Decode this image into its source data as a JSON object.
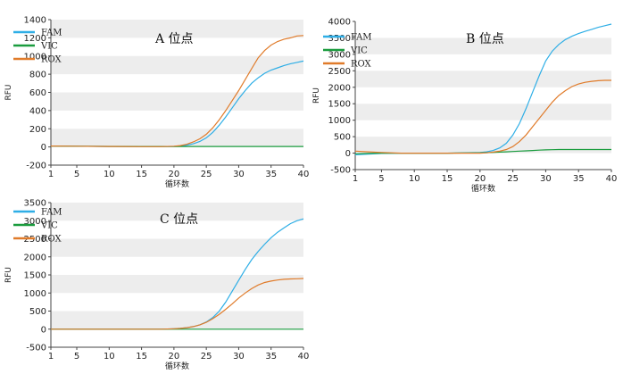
{
  "chart_data": [
    {
      "type": "line",
      "title": "A 位点",
      "xlabel": "循环数",
      "ylabel": "RFU",
      "xlim": [
        1,
        40
      ],
      "ylim": [
        -200,
        1400
      ],
      "xticks": [
        1,
        5,
        10,
        15,
        20,
        25,
        30,
        35,
        40
      ],
      "yticks": [
        -200,
        0,
        200,
        400,
        600,
        800,
        1000,
        1200,
        1400
      ],
      "grid": "horizontal bands",
      "legend_position": "top-left",
      "x": [
        1,
        5,
        10,
        15,
        18,
        20,
        21,
        22,
        23,
        24,
        25,
        26,
        27,
        28,
        29,
        30,
        31,
        32,
        33,
        34,
        35,
        36,
        37,
        38,
        39,
        40
      ],
      "series": [
        {
          "name": "FAM",
          "color": "#2eaee6",
          "values": [
            10,
            8,
            5,
            3,
            3,
            5,
            10,
            20,
            35,
            60,
            100,
            160,
            240,
            330,
            430,
            530,
            620,
            700,
            760,
            810,
            845,
            870,
            895,
            915,
            930,
            945
          ]
        },
        {
          "name": "VIC",
          "color": "#1a9c3e",
          "values": [
            10,
            8,
            6,
            5,
            5,
            5,
            5,
            5,
            5,
            5,
            5,
            5,
            5,
            5,
            5,
            5,
            5,
            5,
            5,
            5,
            5,
            5,
            5,
            5,
            5,
            5
          ]
        },
        {
          "name": "ROX",
          "color": "#e07b2a",
          "values": [
            10,
            8,
            5,
            3,
            3,
            8,
            15,
            30,
            55,
            90,
            140,
            210,
            300,
            400,
            510,
            620,
            740,
            860,
            980,
            1060,
            1120,
            1160,
            1185,
            1200,
            1220,
            1225
          ]
        }
      ]
    },
    {
      "type": "line",
      "title": "B 位点",
      "xlabel": "循环数",
      "ylabel": "RFU",
      "xlim": [
        1,
        40
      ],
      "ylim": [
        -500,
        4000
      ],
      "xticks": [
        1,
        5,
        10,
        15,
        20,
        25,
        30,
        35,
        40
      ],
      "yticks": [
        -500,
        0,
        500,
        1000,
        1500,
        2000,
        2500,
        3000,
        3500,
        4000
      ],
      "grid": "horizontal bands",
      "legend_position": "top-left",
      "x": [
        1,
        3,
        5,
        8,
        10,
        15,
        20,
        21,
        22,
        23,
        24,
        25,
        26,
        27,
        28,
        29,
        30,
        31,
        32,
        33,
        34,
        35,
        36,
        37,
        38,
        39,
        40
      ],
      "series": [
        {
          "name": "FAM",
          "color": "#2eaee6",
          "values": [
            -50,
            -30,
            -10,
            0,
            0,
            0,
            20,
            40,
            80,
            160,
            300,
            550,
            900,
            1350,
            1850,
            2350,
            2800,
            3100,
            3300,
            3450,
            3550,
            3630,
            3700,
            3760,
            3820,
            3870,
            3920
          ]
        },
        {
          "name": "VIC",
          "color": "#1a9c3e",
          "values": [
            -20,
            -10,
            0,
            0,
            0,
            0,
            10,
            15,
            20,
            30,
            40,
            50,
            60,
            70,
            80,
            90,
            100,
            105,
            110,
            110,
            110,
            110,
            110,
            110,
            110,
            110,
            110
          ]
        },
        {
          "name": "ROX",
          "color": "#e07b2a",
          "values": [
            60,
            40,
            20,
            0,
            0,
            0,
            0,
            10,
            30,
            60,
            110,
            200,
            350,
            550,
            800,
            1050,
            1300,
            1550,
            1750,
            1900,
            2020,
            2100,
            2150,
            2180,
            2200,
            2210,
            2210
          ]
        }
      ]
    },
    {
      "type": "line",
      "title": "C 位点",
      "xlabel": "循环数",
      "ylabel": "RFU",
      "xlim": [
        1,
        40
      ],
      "ylim": [
        -500,
        3500
      ],
      "xticks": [
        1,
        5,
        10,
        15,
        20,
        25,
        30,
        35,
        40
      ],
      "yticks": [
        -500,
        0,
        500,
        1000,
        1500,
        2000,
        2500,
        3000,
        3500
      ],
      "grid": "horizontal bands",
      "legend_position": "top-left",
      "x": [
        1,
        5,
        10,
        15,
        18,
        20,
        21,
        22,
        23,
        24,
        25,
        26,
        27,
        28,
        29,
        30,
        31,
        32,
        33,
        34,
        35,
        36,
        37,
        38,
        39,
        40
      ],
      "series": [
        {
          "name": "FAM",
          "color": "#2eaee6",
          "values": [
            0,
            0,
            0,
            0,
            0,
            10,
            20,
            40,
            70,
            120,
            200,
            320,
            500,
            750,
            1050,
            1350,
            1650,
            1920,
            2150,
            2350,
            2530,
            2680,
            2800,
            2920,
            3000,
            3050
          ]
        },
        {
          "name": "VIC",
          "color": "#1a9c3e",
          "values": [
            0,
            0,
            0,
            0,
            0,
            0,
            0,
            0,
            0,
            0,
            0,
            0,
            0,
            0,
            0,
            0,
            0,
            0,
            0,
            0,
            0,
            0,
            0,
            0,
            0,
            0
          ]
        },
        {
          "name": "ROX",
          "color": "#e07b2a",
          "values": [
            0,
            0,
            0,
            0,
            0,
            10,
            20,
            40,
            70,
            120,
            190,
            290,
            410,
            550,
            700,
            860,
            1000,
            1120,
            1220,
            1290,
            1330,
            1360,
            1380,
            1390,
            1395,
            1400
          ]
        }
      ]
    }
  ]
}
